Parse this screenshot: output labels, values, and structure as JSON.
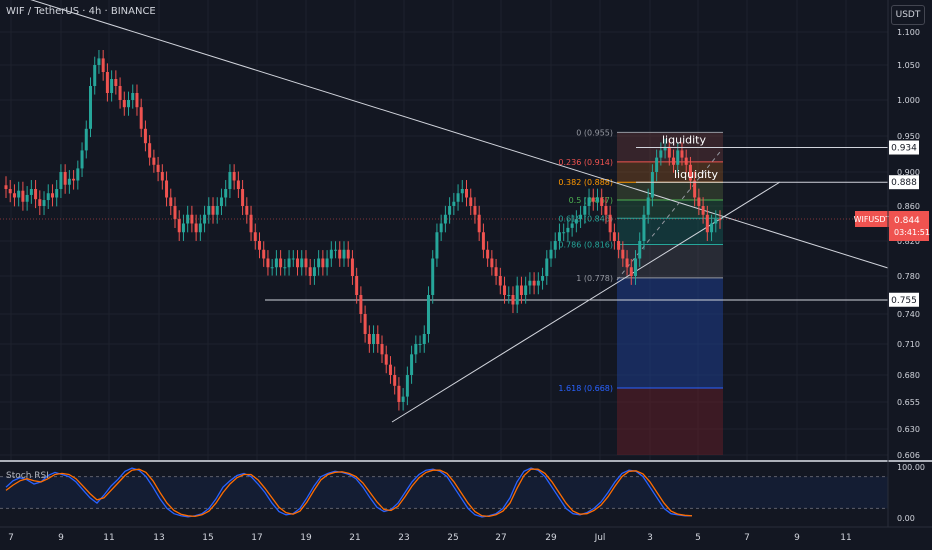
{
  "header": {
    "title": "WIF / TetherUS · 4h · BINANCE",
    "currency_button": "USDT"
  },
  "indicator": {
    "name": "Stoch RSI",
    "top_label": "100.00",
    "bottom_label": "0.00"
  },
  "colors": {
    "up": "#26a69a",
    "down": "#ef5350",
    "background": "#131722",
    "grid": "#1e222d",
    "k_line": "#2962ff",
    "d_line": "#ff6d00"
  },
  "chart_data": {
    "type": "candlestick",
    "symbol": "WIFUSDT",
    "y_ticks": [
      0.606,
      0.63,
      0.655,
      0.68,
      0.71,
      0.74,
      0.78,
      0.82,
      0.86,
      0.9,
      0.95,
      1.0,
      1.05,
      1.1
    ],
    "x_ticks": [
      "7",
      "9",
      "11",
      "13",
      "15",
      "17",
      "19",
      "21",
      "23",
      "25",
      "27",
      "29",
      "Jul",
      "3",
      "5",
      "7",
      "9",
      "11"
    ],
    "current_price": {
      "label": "WIFUSDT",
      "value": "0.844",
      "countdown": "03:41:51"
    },
    "horizontal_levels": [
      {
        "value": 0.934,
        "label": "0.934"
      },
      {
        "value": 0.888,
        "label": "0.888"
      },
      {
        "value": 0.755,
        "label": "0.755"
      }
    ],
    "fibonacci": [
      {
        "label": "0 (0.955)",
        "value": 0.955
      },
      {
        "label": "0.236 (0.914)",
        "value": 0.914
      },
      {
        "label": "0.382 (0.888)",
        "value": 0.888
      },
      {
        "label": "0.5 (0.867)",
        "value": 0.867
      },
      {
        "label": "0.618 (0.846)",
        "value": 0.846
      },
      {
        "label": "0.786 (0.816)",
        "value": 0.816
      },
      {
        "label": "1 (0.778)",
        "value": 0.778
      },
      {
        "label": "1.618 (0.668)",
        "value": 0.668
      }
    ],
    "annotations": [
      {
        "text": "liquidity",
        "near": 0.934
      },
      {
        "text": "liquidity",
        "near": 0.888
      }
    ],
    "candles_close": [
      0.88,
      0.875,
      0.87,
      0.878,
      0.865,
      0.873,
      0.88,
      0.868,
      0.86,
      0.867,
      0.875,
      0.87,
      0.88,
      0.9,
      0.885,
      0.892,
      0.89,
      0.905,
      0.93,
      0.96,
      1.02,
      1.05,
      1.06,
      1.04,
      1.01,
      1.03,
      1.02,
      1.0,
      0.99,
      1.0,
      1.01,
      0.99,
      0.96,
      0.94,
      0.92,
      0.91,
      0.9,
      0.89,
      0.87,
      0.86,
      0.845,
      0.83,
      0.84,
      0.85,
      0.84,
      0.83,
      0.84,
      0.85,
      0.86,
      0.85,
      0.86,
      0.87,
      0.88,
      0.9,
      0.89,
      0.88,
      0.86,
      0.85,
      0.83,
      0.82,
      0.81,
      0.8,
      0.79,
      0.79,
      0.8,
      0.79,
      0.79,
      0.8,
      0.8,
      0.79,
      0.8,
      0.79,
      0.78,
      0.79,
      0.8,
      0.79,
      0.8,
      0.81,
      0.81,
      0.8,
      0.81,
      0.8,
      0.78,
      0.76,
      0.74,
      0.72,
      0.71,
      0.72,
      0.71,
      0.7,
      0.69,
      0.68,
      0.67,
      0.655,
      0.66,
      0.68,
      0.7,
      0.71,
      0.71,
      0.72,
      0.76,
      0.8,
      0.83,
      0.84,
      0.85,
      0.86,
      0.865,
      0.875,
      0.88,
      0.87,
      0.86,
      0.85,
      0.83,
      0.81,
      0.8,
      0.79,
      0.78,
      0.77,
      0.76,
      0.76,
      0.75,
      0.77,
      0.76,
      0.77,
      0.775,
      0.77,
      0.775,
      0.78,
      0.8,
      0.81,
      0.82,
      0.83,
      0.83,
      0.835,
      0.84,
      0.845,
      0.85,
      0.86,
      0.87,
      0.865,
      0.87,
      0.86,
      0.85,
      0.83,
      0.82,
      0.81,
      0.8,
      0.79,
      0.78,
      0.8,
      0.82,
      0.85,
      0.87,
      0.9,
      0.92,
      0.93,
      0.935,
      0.92,
      0.91,
      0.93,
      0.92,
      0.91,
      0.89,
      0.87,
      0.86,
      0.85,
      0.83,
      0.84,
      0.845,
      0.844
    ],
    "stoch_rsi": {
      "k": [
        60,
        72,
        78,
        74,
        66,
        70,
        82,
        88,
        84,
        80,
        70,
        55,
        40,
        30,
        45,
        62,
        75,
        90,
        96,
        92,
        80,
        60,
        38,
        20,
        10,
        6,
        4,
        6,
        10,
        20,
        38,
        60,
        72,
        82,
        86,
        80,
        66,
        50,
        30,
        14,
        8,
        10,
        20,
        40,
        62,
        80,
        86,
        90,
        88,
        84,
        76,
        60,
        40,
        22,
        14,
        18,
        30,
        50,
        70,
        84,
        92,
        94,
        90,
        80,
        60,
        40,
        20,
        8,
        4,
        6,
        10,
        20,
        40,
        70,
        90,
        96,
        92,
        80,
        60,
        40,
        20,
        10,
        8,
        12,
        20,
        32,
        50,
        70,
        86,
        92,
        90,
        80,
        60,
        40,
        20,
        10,
        8,
        6,
        6
      ],
      "d": [
        54,
        64,
        72,
        76,
        72,
        70,
        76,
        84,
        86,
        84,
        76,
        62,
        48,
        36,
        40,
        54,
        68,
        82,
        92,
        94,
        88,
        72,
        50,
        30,
        16,
        9,
        6,
        5,
        8,
        15,
        30,
        50,
        66,
        78,
        84,
        84,
        74,
        58,
        40,
        22,
        12,
        9,
        15,
        32,
        54,
        74,
        84,
        88,
        89,
        86,
        80,
        68,
        50,
        32,
        18,
        16,
        24,
        42,
        62,
        78,
        88,
        92,
        92,
        86,
        70,
        50,
        30,
        14,
        6,
        5,
        8,
        15,
        30,
        58,
        82,
        94,
        94,
        86,
        70,
        50,
        30,
        15,
        9,
        10,
        16,
        26,
        42,
        62,
        80,
        90,
        91,
        85,
        70,
        50,
        30,
        15,
        9,
        7,
        6
      ],
      "ylim": [
        0,
        100
      ]
    }
  }
}
